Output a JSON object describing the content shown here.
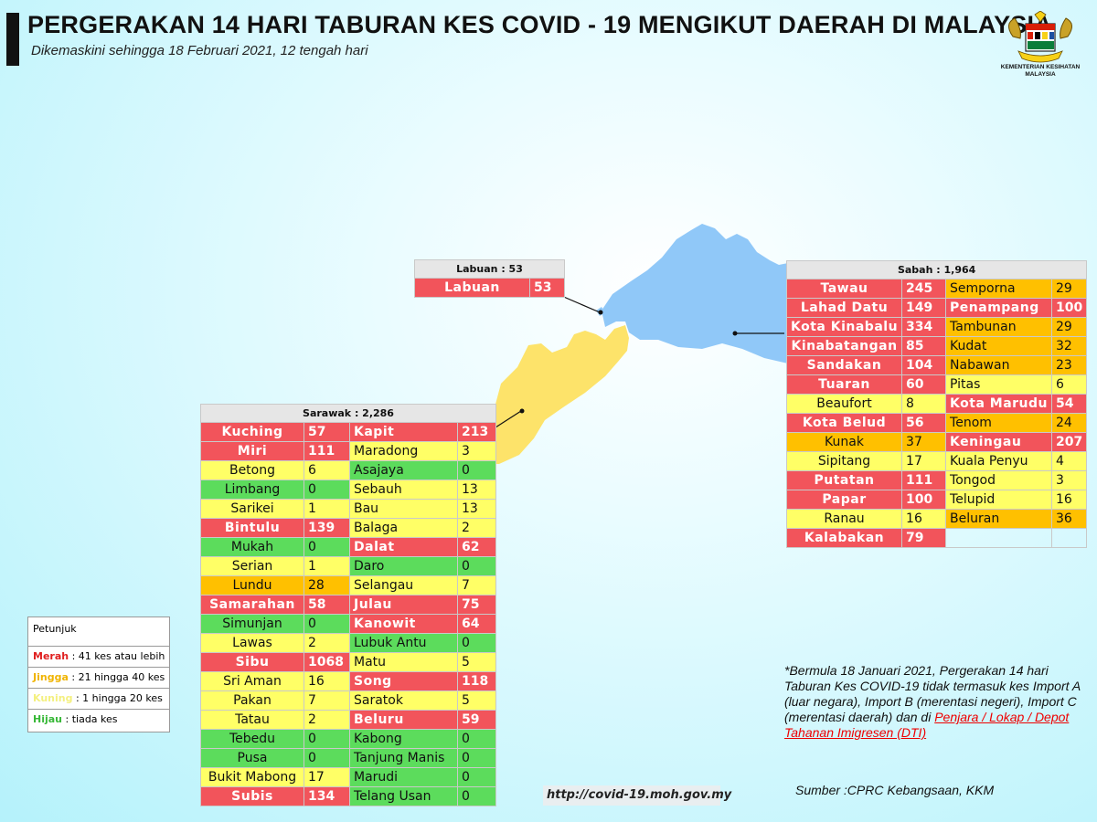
{
  "header": {
    "title": "PERGERAKAN 14 HARI TABURAN KES COVID - 19 MENGIKUT DAERAH DI MALAYSIA",
    "subtitle": "Dikemaskini sehingga 18 Februari 2021, 12 tengah hari",
    "logo_text_1": "KEMENTERIAN KESIHATAN",
    "logo_text_2": "MALAYSIA"
  },
  "colors": {
    "red": "#f2545b",
    "orange": "#ffc000",
    "yellow": "#ffff66",
    "green": "#5cdc5c",
    "sabah_map": "#90c8f8",
    "sarawak_map": "#fde36a"
  },
  "labuan": {
    "title": "Labuan : 53",
    "name": "Labuan",
    "value": "53"
  },
  "sabah": {
    "title": "Sabah : 1,964",
    "rows": [
      [
        {
          "n": "Tawau",
          "v": "245",
          "c": "r"
        },
        {
          "n": "Semporna",
          "v": "29",
          "c": "o"
        }
      ],
      [
        {
          "n": "Lahad Datu",
          "v": "149",
          "c": "r"
        },
        {
          "n": "Penampang",
          "v": "100",
          "c": "r"
        }
      ],
      [
        {
          "n": "Kota Kinabalu",
          "v": "334",
          "c": "r"
        },
        {
          "n": "Tambunan",
          "v": "29",
          "c": "o"
        }
      ],
      [
        {
          "n": "Kinabatangan",
          "v": "85",
          "c": "r"
        },
        {
          "n": "Kudat",
          "v": "32",
          "c": "o"
        }
      ],
      [
        {
          "n": "Sandakan",
          "v": "104",
          "c": "r"
        },
        {
          "n": "Nabawan",
          "v": "23",
          "c": "o"
        }
      ],
      [
        {
          "n": "Tuaran",
          "v": "60",
          "c": "r"
        },
        {
          "n": "Pitas",
          "v": "6",
          "c": "y"
        }
      ],
      [
        {
          "n": "Beaufort",
          "v": "8",
          "c": "y"
        },
        {
          "n": "Kota Marudu",
          "v": "54",
          "c": "r"
        }
      ],
      [
        {
          "n": "Kota Belud",
          "v": "56",
          "c": "r"
        },
        {
          "n": "Tenom",
          "v": "24",
          "c": "o"
        }
      ],
      [
        {
          "n": "Kunak",
          "v": "37",
          "c": "o"
        },
        {
          "n": "Keningau",
          "v": "207",
          "c": "r"
        }
      ],
      [
        {
          "n": "Sipitang",
          "v": "17",
          "c": "y"
        },
        {
          "n": "Kuala Penyu",
          "v": "4",
          "c": "y"
        }
      ],
      [
        {
          "n": "Putatan",
          "v": "111",
          "c": "r"
        },
        {
          "n": "Tongod",
          "v": "3",
          "c": "y"
        }
      ],
      [
        {
          "n": "Papar",
          "v": "100",
          "c": "r"
        },
        {
          "n": "Telupid",
          "v": "16",
          "c": "y"
        }
      ],
      [
        {
          "n": "Ranau",
          "v": "16",
          "c": "y"
        },
        {
          "n": "Beluran",
          "v": "36",
          "c": "o"
        }
      ],
      [
        {
          "n": "Kalabakan",
          "v": "79",
          "c": "r"
        },
        null
      ]
    ]
  },
  "sarawak": {
    "title": "Sarawak : 2,286",
    "rows": [
      [
        {
          "n": "Kuching",
          "v": "57",
          "c": "r"
        },
        {
          "n": "Kapit",
          "v": "213",
          "c": "r"
        }
      ],
      [
        {
          "n": "Miri",
          "v": "111",
          "c": "r"
        },
        {
          "n": "Maradong",
          "v": "3",
          "c": "y"
        }
      ],
      [
        {
          "n": "Betong",
          "v": "6",
          "c": "y"
        },
        {
          "n": "Asajaya",
          "v": "0",
          "c": "g"
        }
      ],
      [
        {
          "n": "Limbang",
          "v": "0",
          "c": "g"
        },
        {
          "n": "Sebauh",
          "v": "13",
          "c": "y"
        }
      ],
      [
        {
          "n": "Sarikei",
          "v": "1",
          "c": "y"
        },
        {
          "n": "Bau",
          "v": "13",
          "c": "y"
        }
      ],
      [
        {
          "n": "Bintulu",
          "v": "139",
          "c": "r"
        },
        {
          "n": "Balaga",
          "v": "2",
          "c": "y"
        }
      ],
      [
        {
          "n": "Mukah",
          "v": "0",
          "c": "g"
        },
        {
          "n": "Dalat",
          "v": "62",
          "c": "r"
        }
      ],
      [
        {
          "n": "Serian",
          "v": "1",
          "c": "y"
        },
        {
          "n": "Daro",
          "v": "0",
          "c": "g"
        }
      ],
      [
        {
          "n": "Lundu",
          "v": "28",
          "c": "o"
        },
        {
          "n": "Selangau",
          "v": "7",
          "c": "y"
        }
      ],
      [
        {
          "n": "Samarahan",
          "v": "58",
          "c": "r"
        },
        {
          "n": "Julau",
          "v": "75",
          "c": "r"
        }
      ],
      [
        {
          "n": "Simunjan",
          "v": "0",
          "c": "g"
        },
        {
          "n": "Kanowit",
          "v": "64",
          "c": "r"
        }
      ],
      [
        {
          "n": "Lawas",
          "v": "2",
          "c": "y"
        },
        {
          "n": "Lubuk Antu",
          "v": "0",
          "c": "g"
        }
      ],
      [
        {
          "n": "Sibu",
          "v": "1068",
          "c": "r"
        },
        {
          "n": "Matu",
          "v": "5",
          "c": "y"
        }
      ],
      [
        {
          "n": "Sri Aman",
          "v": "16",
          "c": "y"
        },
        {
          "n": "Song",
          "v": "118",
          "c": "r"
        }
      ],
      [
        {
          "n": "Pakan",
          "v": "7",
          "c": "y"
        },
        {
          "n": "Saratok",
          "v": "5",
          "c": "y"
        }
      ],
      [
        {
          "n": "Tatau",
          "v": "2",
          "c": "y"
        },
        {
          "n": "Beluru",
          "v": "59",
          "c": "r"
        }
      ],
      [
        {
          "n": "Tebedu",
          "v": "0",
          "c": "g"
        },
        {
          "n": "Kabong",
          "v": "0",
          "c": "g"
        }
      ],
      [
        {
          "n": "Pusa",
          "v": "0",
          "c": "g"
        },
        {
          "n": "Tanjung Manis",
          "v": "0",
          "c": "g"
        }
      ],
      [
        {
          "n": "Bukit Mabong",
          "v": "17",
          "c": "y"
        },
        {
          "n": "Marudi",
          "v": "0",
          "c": "g"
        }
      ],
      [
        {
          "n": "Subis",
          "v": "134",
          "c": "r"
        },
        {
          "n": "Telang Usan",
          "v": "0",
          "c": "g"
        }
      ]
    ]
  },
  "legend": {
    "title": "Petunjuk",
    "items": [
      {
        "key": "Merah",
        "text": " : 41 kes atau lebih",
        "color": "#e02020"
      },
      {
        "key": "Jingga",
        "text": " : 21 hingga 40 kes",
        "color": "#f0b400"
      },
      {
        "key": "Kuning",
        "text": " : 1 hingga 20 kes",
        "color": "#f4f080"
      },
      {
        "key": "Hijau",
        "text": " : tiada kes",
        "color": "#38b838"
      }
    ]
  },
  "note": {
    "text": "*Bermula 18 Januari 2021, Pergerakan 14 hari Taburan Kes COVID-19 tidak termasuk kes Import A (luar negara), Import B (merentasi negeri), Import C (merentasi daerah) dan di ",
    "link": "Penjara / Lokap / Depot Tahanan Imigresen (DTI)"
  },
  "source": "Sumber :CPRC Kebangsaan,  KKM",
  "url": "http://covid-19.moh.gov.my"
}
